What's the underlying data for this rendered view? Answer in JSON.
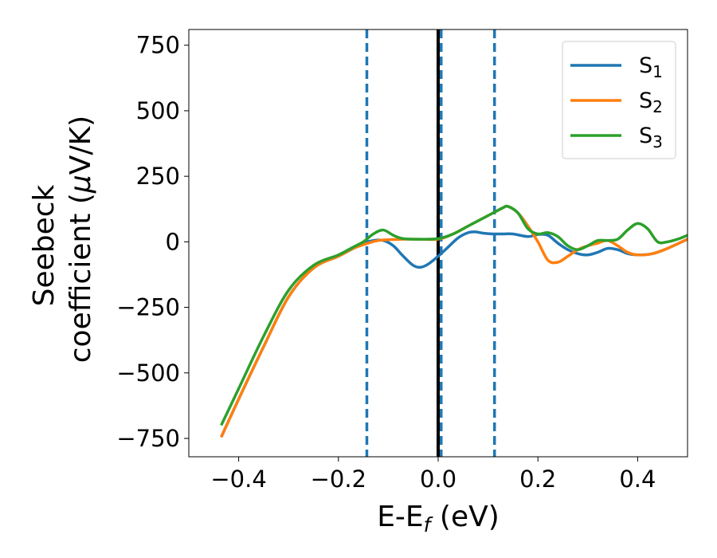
{
  "chart_data": {
    "type": "line",
    "xlabel": {
      "main": "E-E",
      "sub": "f",
      "tail": " (eV)"
    },
    "ylabel": {
      "line1": "Seebeck",
      "line2_a": "coefficient  (",
      "line2_mu": "μ",
      "line2_b": "V/K)"
    },
    "xlim": [
      -0.5,
      0.5
    ],
    "ylim": [
      -820,
      810
    ],
    "xticks": [
      -0.4,
      -0.2,
      0.0,
      0.2,
      0.4
    ],
    "xtick_labels": [
      "−0.4",
      "−0.2",
      "0.0",
      "0.2",
      "0.4"
    ],
    "yticks": [
      -750,
      -500,
      -250,
      0,
      250,
      500,
      750
    ],
    "ytick_labels": [
      "−750",
      "−500",
      "−250",
      "0",
      "250",
      "500",
      "750"
    ],
    "grid": false,
    "legend_position": "top-right",
    "vlines": [
      {
        "x": -0.143,
        "style": "dashed",
        "color": "#1f77b4"
      },
      {
        "x": 0.0,
        "style": "solid",
        "color": "#000000"
      },
      {
        "x": 0.006,
        "style": "dashed",
        "color": "#1f77b4"
      },
      {
        "x": 0.113,
        "style": "dashed",
        "color": "#1f77b4"
      }
    ],
    "series": [
      {
        "name": "S",
        "sub": "1",
        "color": "#1f77b4",
        "x": [
          -0.435,
          -0.4,
          -0.35,
          -0.3,
          -0.25,
          -0.2,
          -0.17,
          -0.15,
          -0.13,
          -0.11,
          -0.09,
          -0.07,
          -0.05,
          -0.035,
          -0.02,
          0.0,
          0.02,
          0.04,
          0.06,
          0.075,
          0.09,
          0.11,
          0.13,
          0.15,
          0.18,
          0.2,
          0.22,
          0.24,
          0.26,
          0.28,
          0.3,
          0.32,
          0.34,
          0.36,
          0.38,
          0.4,
          0.43,
          0.46,
          0.5
        ],
        "y": [
          -745,
          -600,
          -400,
          -210,
          -100,
          -55,
          -25,
          -5,
          5,
          5,
          -15,
          -55,
          -90,
          -97,
          -85,
          -55,
          -20,
          15,
          35,
          38,
          33,
          30,
          30,
          30,
          20,
          28,
          25,
          -5,
          -30,
          -45,
          -50,
          -40,
          -25,
          -30,
          -45,
          -50,
          -45,
          -25,
          10
        ]
      },
      {
        "name": "S",
        "sub": "2",
        "color": "#ff7f0e",
        "x": [
          -0.435,
          -0.4,
          -0.35,
          -0.3,
          -0.25,
          -0.2,
          -0.17,
          -0.14,
          -0.12,
          -0.1,
          -0.07,
          -0.04,
          0.0,
          0.03,
          0.06,
          0.09,
          0.11,
          0.13,
          0.14,
          0.16,
          0.18,
          0.2,
          0.22,
          0.24,
          0.26,
          0.28,
          0.3,
          0.32,
          0.34,
          0.36,
          0.38,
          0.4,
          0.43,
          0.46,
          0.5
        ],
        "y": [
          -745,
          -600,
          -400,
          -210,
          -100,
          -55,
          -25,
          -5,
          5,
          8,
          10,
          10,
          10,
          30,
          60,
          90,
          110,
          130,
          135,
          110,
          60,
          0,
          -70,
          -78,
          -55,
          -30,
          -15,
          -5,
          5,
          -15,
          -40,
          -50,
          -45,
          -25,
          10
        ]
      },
      {
        "name": "S",
        "sub": "3",
        "color": "#2ca02c",
        "x": [
          -0.435,
          -0.4,
          -0.35,
          -0.3,
          -0.25,
          -0.2,
          -0.17,
          -0.15,
          -0.13,
          -0.11,
          -0.09,
          -0.07,
          -0.04,
          0.0,
          0.03,
          0.06,
          0.09,
          0.11,
          0.13,
          0.14,
          0.16,
          0.18,
          0.2,
          0.22,
          0.24,
          0.26,
          0.28,
          0.3,
          0.32,
          0.34,
          0.36,
          0.38,
          0.4,
          0.42,
          0.44,
          0.46,
          0.48,
          0.5
        ],
        "y": [
          -700,
          -560,
          -360,
          -185,
          -90,
          -50,
          -20,
          0,
          30,
          45,
          25,
          12,
          10,
          12,
          30,
          60,
          90,
          110,
          130,
          135,
          110,
          50,
          30,
          35,
          20,
          -15,
          -30,
          -15,
          5,
          5,
          10,
          45,
          70,
          50,
          0,
          0,
          10,
          25
        ]
      }
    ]
  }
}
